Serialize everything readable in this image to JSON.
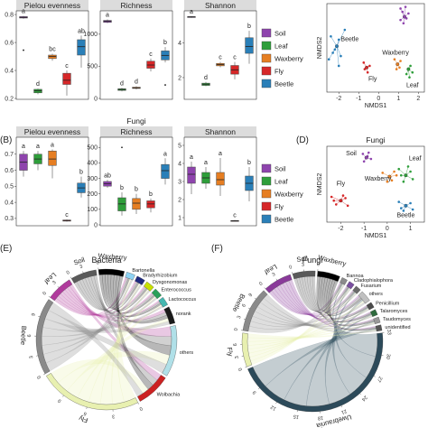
{
  "colors": {
    "Soil": "#8e44ad",
    "Leaf": "#2e9e3a",
    "Waxberry": "#e67e22",
    "Fly": "#d62728",
    "Beetle": "#2a7fb8",
    "strip": "#dcdcdc",
    "bacterial_genus_bars": [
      "#8fd3f4",
      "#1f2a80",
      "#c8e000",
      "#2aa05a",
      "#45b7b0",
      "#1a1a1a"
    ],
    "fungal_genus_bars": [
      "#8c8c8c",
      "#7a4fa0",
      "#6a6a6a",
      "#c0c0c0",
      "#4a4a4a",
      "#2e6b3e",
      "#999999",
      "#555555"
    ]
  },
  "panel_letters": {
    "B": "(B)",
    "D": "(D)",
    "E": "(E)",
    "F": "(F)"
  },
  "legend": [
    "Soil",
    "Leaf",
    "Waxberry",
    "Fly",
    "Beetle"
  ],
  "chart_data": [
    {
      "id": "A-pielou",
      "type": "box",
      "title": "Pielou evenness",
      "categories": [
        "Soil",
        "Leaf",
        "Waxberry",
        "Fly",
        "Beetle"
      ],
      "ylim": [
        0.2,
        0.82
      ],
      "ticks": [
        "0.2",
        "0.4",
        "0.6",
        "0.8"
      ],
      "tick_values": [
        0.2,
        0.4,
        0.6,
        0.8
      ],
      "letters": [
        "a",
        "d",
        "bc",
        "c",
        "ab"
      ],
      "boxes": [
        {
          "min": 0.77,
          "q1": 0.775,
          "median": 0.78,
          "q3": 0.785,
          "max": 0.79,
          "outliers": [
            0.545
          ]
        },
        {
          "min": 0.23,
          "q1": 0.24,
          "median": 0.255,
          "q3": 0.265,
          "max": 0.27,
          "outliers": []
        },
        {
          "min": 0.47,
          "q1": 0.485,
          "median": 0.5,
          "q3": 0.51,
          "max": 0.52,
          "outliers": []
        },
        {
          "min": 0.22,
          "q1": 0.3,
          "median": 0.33,
          "q3": 0.38,
          "max": 0.4,
          "outliers": []
        },
        {
          "min": 0.42,
          "q1": 0.51,
          "median": 0.57,
          "q3": 0.62,
          "max": 0.65,
          "outliers": []
        }
      ]
    },
    {
      "id": "A-richness",
      "type": "box",
      "title": "Richness",
      "categories": [
        "Soil",
        "Leaf",
        "Waxberry",
        "Fly",
        "Beetle"
      ],
      "ylim": [
        0,
        1350
      ],
      "ticks": [
        "0",
        "500",
        "1000"
      ],
      "tick_values": [
        0,
        500,
        1000
      ],
      "letters": [
        "a",
        "d",
        "d",
        "c",
        "b"
      ],
      "boxes": [
        {
          "min": 1170,
          "q1": 1185,
          "median": 1200,
          "q3": 1215,
          "max": 1230,
          "outliers": []
        },
        {
          "min": 110,
          "q1": 125,
          "median": 140,
          "q3": 150,
          "max": 165,
          "outliers": []
        },
        {
          "min": 140,
          "q1": 155,
          "median": 165,
          "q3": 175,
          "max": 190,
          "outliers": []
        },
        {
          "min": 420,
          "q1": 470,
          "median": 520,
          "q3": 580,
          "max": 620,
          "outliers": []
        },
        {
          "min": 560,
          "q1": 600,
          "median": 670,
          "q3": 740,
          "max": 800,
          "outliers": [
            210
          ]
        }
      ]
    },
    {
      "id": "A-shannon",
      "type": "box",
      "title": "Shannon",
      "categories": [
        "Soil",
        "Leaf",
        "Waxberry",
        "Fly",
        "Beetle"
      ],
      "ylim": [
        0.8,
        5.8
      ],
      "ticks": [
        "2",
        "4"
      ],
      "tick_values": [
        2,
        4
      ],
      "letters": [
        "a",
        "d",
        "c",
        "c",
        "b"
      ],
      "boxes": [
        {
          "min": 5.45,
          "q1": 5.48,
          "median": 5.5,
          "q3": 5.52,
          "max": 5.55,
          "outliers": []
        },
        {
          "min": 1.5,
          "q1": 1.55,
          "median": 1.62,
          "q3": 1.68,
          "max": 1.75,
          "outliers": []
        },
        {
          "min": 2.6,
          "q1": 2.68,
          "median": 2.75,
          "q3": 2.82,
          "max": 2.9,
          "outliers": []
        },
        {
          "min": 1.9,
          "q1": 2.2,
          "median": 2.45,
          "q3": 2.7,
          "max": 2.9,
          "outliers": []
        },
        {
          "min": 2.8,
          "q1": 3.4,
          "median": 3.8,
          "q3": 4.3,
          "max": 4.7,
          "outliers": []
        }
      ]
    },
    {
      "id": "B-pielou",
      "type": "box",
      "title": "Pielou evenness",
      "categories": [
        "Soil",
        "Leaf",
        "Waxberry",
        "Fly",
        "Beetle"
      ],
      "ylim": [
        0.26,
        0.8
      ],
      "ticks": [
        "0.3",
        "0.4",
        "0.5",
        "0.6",
        "0.7"
      ],
      "tick_values": [
        0.3,
        0.4,
        0.5,
        0.6,
        0.7
      ],
      "letters": [
        "a",
        "a",
        "a",
        "c",
        "b"
      ],
      "boxes": [
        {
          "min": 0.56,
          "q1": 0.6,
          "median": 0.65,
          "q3": 0.7,
          "max": 0.72,
          "outliers": []
        },
        {
          "min": 0.6,
          "q1": 0.64,
          "median": 0.67,
          "q3": 0.7,
          "max": 0.72,
          "outliers": []
        },
        {
          "min": 0.55,
          "q1": 0.63,
          "median": 0.67,
          "q3": 0.72,
          "max": 0.73,
          "outliers": []
        },
        {
          "min": 0.28,
          "q1": 0.283,
          "median": 0.287,
          "q3": 0.29,
          "max": 0.293,
          "outliers": []
        },
        {
          "min": 0.43,
          "q1": 0.46,
          "median": 0.49,
          "q3": 0.52,
          "max": 0.56,
          "outliers": []
        }
      ]
    },
    {
      "id": "B-richness",
      "type": "box",
      "title": "Richness",
      "categories": [
        "Soil",
        "Leaf",
        "Waxberry",
        "Fly",
        "Beetle"
      ],
      "ylim": [
        0,
        560
      ],
      "ticks": [
        "0",
        "100",
        "200",
        "300",
        "400",
        "500"
      ],
      "tick_values": [
        0,
        100,
        200,
        300,
        400,
        500
      ],
      "letters": [
        "ab",
        "b",
        "b",
        "b",
        "a"
      ],
      "boxes": [
        {
          "min": 240,
          "q1": 250,
          "median": 265,
          "q3": 280,
          "max": 290,
          "outliers": []
        },
        {
          "min": 60,
          "q1": 90,
          "median": 135,
          "q3": 175,
          "max": 210,
          "outliers": [
            500
          ]
        },
        {
          "min": 70,
          "q1": 100,
          "median": 140,
          "q3": 170,
          "max": 200,
          "outliers": []
        },
        {
          "min": 80,
          "q1": 110,
          "median": 135,
          "q3": 155,
          "max": 170,
          "outliers": []
        },
        {
          "min": 260,
          "q1": 300,
          "median": 350,
          "q3": 390,
          "max": 430,
          "outliers": []
        }
      ]
    },
    {
      "id": "B-shannon",
      "type": "box",
      "title": "Shannon",
      "categories": [
        "Soil",
        "Leaf",
        "Waxberry",
        "Fly",
        "Beetle"
      ],
      "ylim": [
        0.6,
        5.4
      ],
      "ticks": [
        "1",
        "2",
        "3",
        "4",
        "5"
      ],
      "tick_values": [
        1,
        2,
        3,
        4,
        5
      ],
      "letters": [
        "a",
        "a",
        "a",
        "c",
        "b"
      ],
      "boxes": [
        {
          "min": 2.3,
          "q1": 2.9,
          "median": 3.4,
          "q3": 3.8,
          "max": 4.1,
          "outliers": []
        },
        {
          "min": 2.6,
          "q1": 2.9,
          "median": 3.2,
          "q3": 3.5,
          "max": 3.8,
          "outliers": []
        },
        {
          "min": 2.2,
          "q1": 2.8,
          "median": 3.1,
          "q3": 3.5,
          "max": 4.3,
          "outliers": []
        },
        {
          "min": 0.78,
          "q1": 0.8,
          "median": 0.82,
          "q3": 0.84,
          "max": 0.87,
          "outliers": []
        },
        {
          "min": 1.9,
          "q1": 2.5,
          "median": 2.9,
          "q3": 3.3,
          "max": 3.8,
          "outliers": []
        }
      ]
    },
    {
      "id": "C-nmds",
      "type": "scatter",
      "title": "",
      "xlabel": "NMDS1",
      "ylabel": "NMDS2",
      "xlim": [
        -2.6,
        2.3
      ],
      "ylim": [
        -1.3,
        1.4
      ],
      "xticks": [
        "-2",
        "-1",
        "0",
        "1",
        "2"
      ],
      "xtick_values": [
        -2,
        -1,
        0,
        1,
        2
      ],
      "labels": [
        "Soil",
        "Beetle",
        "Fly",
        "Waxberry",
        "Leaf"
      ],
      "groups": [
        {
          "name": "Soil",
          "centroid": [
            1.3,
            1.0
          ],
          "points": [
            [
              1.1,
              1.25
            ],
            [
              1.2,
              1.15
            ],
            [
              1.35,
              1.3
            ],
            [
              1.4,
              0.95
            ],
            [
              1.25,
              0.8
            ],
            [
              1.1,
              0.9
            ],
            [
              1.5,
              1.1
            ]
          ]
        },
        {
          "name": "Beetle",
          "centroid": [
            -2.1,
            0.1
          ],
          "points": [
            [
              -2.4,
              0.4
            ],
            [
              -2.3,
              -0.1
            ],
            [
              -2.0,
              0.3
            ],
            [
              -1.9,
              -0.2
            ],
            [
              -2.2,
              0.0
            ],
            [
              -1.7,
              0.6
            ],
            [
              -2.5,
              -0.3
            ],
            [
              -2.0,
              -0.5
            ]
          ]
        },
        {
          "name": "Fly",
          "centroid": [
            -0.6,
            -0.55
          ],
          "points": [
            [
              -0.75,
              -0.4
            ],
            [
              -0.55,
              -0.7
            ],
            [
              -0.45,
              -0.5
            ],
            [
              -0.7,
              -0.6
            ]
          ]
        },
        {
          "name": "Waxberry",
          "centroid": [
            0.95,
            -0.45
          ],
          "points": [
            [
              0.8,
              -0.3
            ],
            [
              1.05,
              -0.55
            ],
            [
              0.9,
              -0.6
            ],
            [
              1.1,
              -0.35
            ]
          ]
        },
        {
          "name": "Leaf",
          "centroid": [
            1.5,
            -0.6
          ],
          "points": [
            [
              1.4,
              -0.75
            ],
            [
              1.6,
              -0.5
            ],
            [
              1.55,
              -0.85
            ],
            [
              1.7,
              -0.7
            ]
          ]
        }
      ]
    },
    {
      "id": "D-nmds",
      "type": "scatter",
      "title": "Fungi",
      "xlabel": "NMDS1",
      "ylabel": "NMDS2",
      "xlim": [
        -2.6,
        1.6
      ],
      "ylim": [
        -1.5,
        1.5
      ],
      "xticks": [
        "-2",
        "-1",
        "0",
        "1"
      ],
      "xtick_values": [
        -2,
        -1,
        0,
        1
      ],
      "labels": [
        "Soil",
        "Leaf",
        "Waxberry",
        "Fly",
        "Beetle"
      ],
      "groups": [
        {
          "name": "Soil",
          "centroid": [
            -0.9,
            1.05
          ],
          "points": [
            [
              -1.05,
              1.2
            ],
            [
              -0.8,
              1.25
            ],
            [
              -0.7,
              1.0
            ],
            [
              -1.0,
              0.9
            ],
            [
              -0.85,
              1.1
            ]
          ]
        },
        {
          "name": "Leaf",
          "centroid": [
            0.8,
            0.35
          ],
          "points": [
            [
              0.5,
              0.6
            ],
            [
              0.7,
              0.1
            ],
            [
              1.0,
              0.5
            ],
            [
              1.1,
              0.2
            ],
            [
              0.6,
              0.35
            ],
            [
              0.9,
              0.7
            ]
          ]
        },
        {
          "name": "Waxberry",
          "centroid": [
            0.1,
            0.3
          ],
          "points": [
            [
              -0.2,
              0.45
            ],
            [
              0.2,
              0.15
            ],
            [
              0.3,
              0.5
            ],
            [
              0.0,
              0.1
            ],
            [
              0.4,
              0.35
            ]
          ]
        },
        {
          "name": "Fly",
          "centroid": [
            -2.0,
            -0.65
          ],
          "points": [
            [
              -2.4,
              -0.5
            ],
            [
              -2.2,
              -0.8
            ],
            [
              -1.8,
              -0.55
            ],
            [
              -1.7,
              -0.85
            ],
            [
              -2.3,
              -0.65
            ],
            [
              -1.9,
              -0.45
            ]
          ]
        },
        {
          "name": "Beetle",
          "centroid": [
            0.8,
            -0.85
          ],
          "points": [
            [
              0.5,
              -0.7
            ],
            [
              0.7,
              -1.05
            ],
            [
              1.0,
              -0.75
            ],
            [
              1.1,
              -1.0
            ],
            [
              0.6,
              -0.95
            ]
          ]
        }
      ]
    },
    {
      "id": "E-chord",
      "type": "chord",
      "title": "Bacteria",
      "segments": [
        {
          "name": "Leaf",
          "value": 3,
          "ticks": [
            "0",
            "3"
          ],
          "color": "#b03a9c"
        },
        {
          "name": "Soil",
          "value": 3,
          "ticks": [
            "0",
            "3"
          ],
          "color": "#5a5a5a"
        },
        {
          "name": "Waxberry",
          "value": 3,
          "ticks": [
            "0"
          ],
          "color": "#000000"
        },
        {
          "name": "Bartonella",
          "value": 1,
          "color": "#8fd3f4"
        },
        {
          "name": "Bradyrhizobium",
          "value": 1,
          "color": "#1f2a80"
        },
        {
          "name": "Dysgonomonas",
          "value": 1,
          "color": "#c8e000"
        },
        {
          "name": "Enterococcus",
          "value": 1,
          "color": "#2aa05a"
        },
        {
          "name": "Lactococcus",
          "value": 1,
          "color": "#45b7b0"
        },
        {
          "name": "norank",
          "value": 2,
          "color": "#1a1a1a"
        },
        {
          "name": "others",
          "value": 6,
          "color": "#b0e0e8"
        },
        {
          "name": "Wolbachia",
          "value": 4,
          "color": "#cc2222"
        },
        {
          "name": "Fly",
          "value": 12,
          "ticks": [
            "0",
            "3",
            "6",
            "9"
          ],
          "color": "#e8f0b0"
        },
        {
          "name": "Beetle",
          "value": 9,
          "ticks": [
            "0",
            "3",
            "6",
            "9"
          ],
          "color": "#8a8a8a"
        }
      ],
      "genus_labels": [
        "Bartonella",
        "Bradyrhizobium",
        "Dysgonomonas",
        "Enterococcus",
        "Lactococcus",
        "norank",
        "Wolbachia",
        "others"
      ]
    },
    {
      "id": "F-chord",
      "type": "chord",
      "title": "Fungi",
      "segments": [
        {
          "name": "Leaf",
          "value": 5,
          "ticks": [
            "0",
            "3"
          ],
          "color": "#8a3a9a"
        },
        {
          "name": "Soil",
          "value": 4,
          "ticks": [
            "0",
            "3"
          ],
          "color": "#5a5a5a"
        },
        {
          "name": "Waxberry",
          "value": 4,
          "ticks": [
            "0"
          ],
          "color": "#000000"
        },
        {
          "name": "Bannoa",
          "value": 1,
          "color": "#8c8c8c"
        },
        {
          "name": "Cladophialophora",
          "value": 1,
          "color": "#7a4fa0"
        },
        {
          "name": "Fusarium",
          "value": 1,
          "color": "#6a6a6a"
        },
        {
          "name": "others",
          "value": 2,
          "color": "#c0c0c0"
        },
        {
          "name": "Penicillium",
          "value": 1,
          "color": "#4a4a4a"
        },
        {
          "name": "Talaromyces",
          "value": 1,
          "color": "#2e6b3e"
        },
        {
          "name": "Taudomyces",
          "value": 1,
          "color": "#999999"
        },
        {
          "name": "unidentified",
          "value": 1,
          "color": "#555555"
        },
        {
          "name": "Uwebraunia",
          "value": 35,
          "ticks": [
            "33",
            "30",
            "27",
            "24",
            "21",
            "18",
            "15",
            "12",
            "9"
          ],
          "color": "#2c4a5a"
        },
        {
          "name": "Fly",
          "value": 6,
          "ticks": [
            "0",
            "3",
            "6"
          ],
          "color": "#e8f0b0"
        },
        {
          "name": "Beetle",
          "value": 8,
          "ticks": [
            "0",
            "3",
            "6",
            "9"
          ],
          "color": "#8a8a8a"
        }
      ],
      "genus_labels": [
        "Bannoa",
        "Cladophialophora",
        "Fusarium",
        "others",
        "Penicillium",
        "Talaromyces",
        "Taudomyces",
        "unidentified",
        "Uwebraunia"
      ]
    }
  ]
}
